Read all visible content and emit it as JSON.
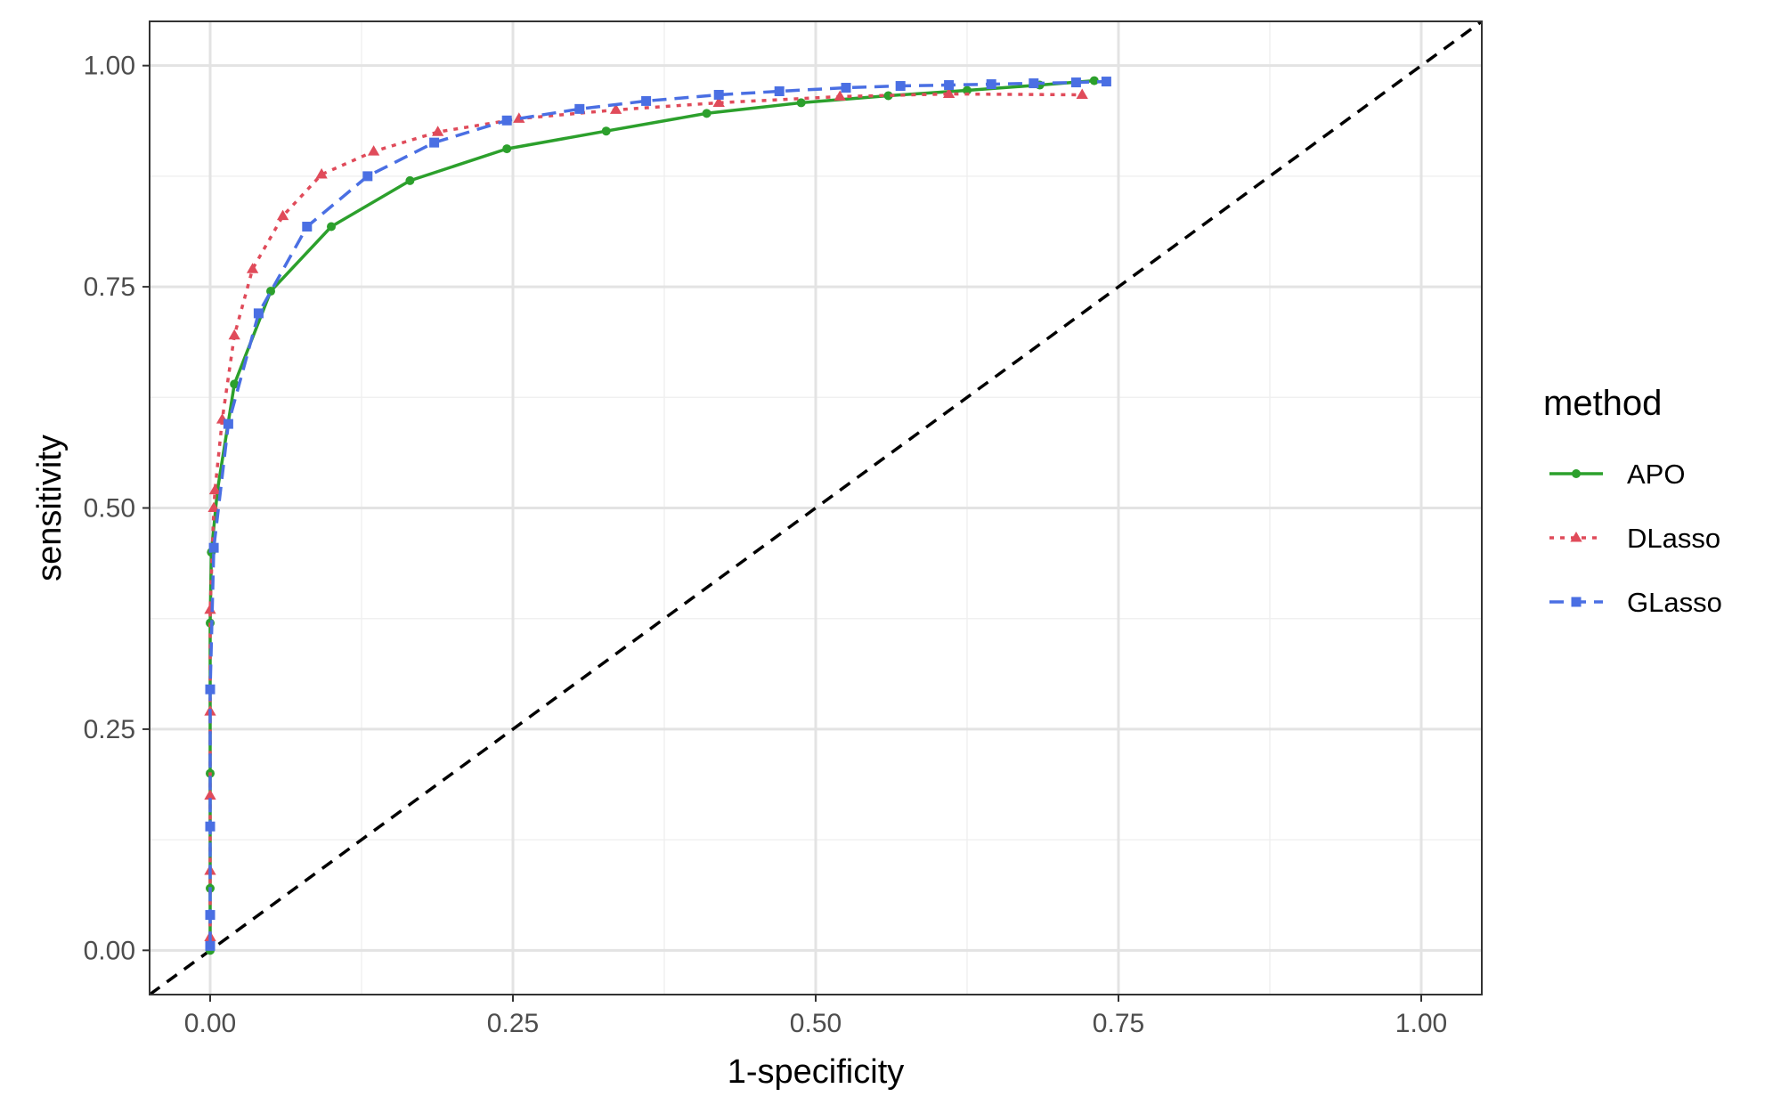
{
  "chart_data": {
    "type": "line",
    "xlabel": "1-specificity",
    "ylabel": "sensitivity",
    "xlim": [
      -0.05,
      1.05
    ],
    "ylim": [
      -0.05,
      1.05
    ],
    "x_ticks": [
      0,
      0.25,
      0.5,
      0.75,
      1.0
    ],
    "x_tick_labels": [
      "0.00",
      "0.25",
      "0.50",
      "0.75",
      "1.00"
    ],
    "y_ticks": [
      0,
      0.25,
      0.5,
      0.75,
      1.0
    ],
    "y_tick_labels": [
      "0.00",
      "0.25",
      "0.50",
      "0.75",
      "1.00"
    ],
    "grid": true,
    "legend": {
      "title": "method",
      "position": "right"
    },
    "reference_line": {
      "from": [
        0,
        0
      ],
      "to": [
        1,
        1
      ],
      "style": "dashed",
      "color": "#000000"
    },
    "series": [
      {
        "name": "APO",
        "color": "#2ca02c",
        "linestyle": "solid",
        "marker": "circle",
        "x": [
          0,
          0,
          0,
          0,
          0.001,
          0.006,
          0.02,
          0.05,
          0.1,
          0.165,
          0.245,
          0.327,
          0.41,
          0.488,
          0.56,
          0.625,
          0.685,
          0.73
        ],
        "y": [
          0.0,
          0.07,
          0.2,
          0.37,
          0.45,
          0.52,
          0.64,
          0.745,
          0.818,
          0.87,
          0.906,
          0.926,
          0.946,
          0.958,
          0.966,
          0.972,
          0.978,
          0.983
        ]
      },
      {
        "name": "DLasso",
        "color": "#e04b5a",
        "linestyle": "dotted",
        "marker": "triangle",
        "x": [
          0,
          0,
          0,
          0,
          0,
          0.003,
          0.004,
          0.01,
          0.02,
          0.035,
          0.06,
          0.092,
          0.135,
          0.188,
          0.255,
          0.335,
          0.42,
          0.52,
          0.61,
          0.72
        ],
        "y": [
          0.015,
          0.09,
          0.175,
          0.27,
          0.385,
          0.5,
          0.52,
          0.6,
          0.695,
          0.77,
          0.83,
          0.877,
          0.903,
          0.925,
          0.94,
          0.95,
          0.958,
          0.965,
          0.968,
          0.967
        ]
      },
      {
        "name": "GLasso",
        "color": "#4a6fe3",
        "linestyle": "dashed",
        "marker": "square",
        "x": [
          0,
          0,
          0,
          0,
          0.003,
          0.015,
          0.04,
          0.08,
          0.13,
          0.185,
          0.245,
          0.305,
          0.36,
          0.42,
          0.47,
          0.525,
          0.57,
          0.61,
          0.645,
          0.68,
          0.715,
          0.74
        ],
        "y": [
          0.005,
          0.04,
          0.14,
          0.295,
          0.455,
          0.595,
          0.72,
          0.818,
          0.875,
          0.913,
          0.938,
          0.951,
          0.96,
          0.967,
          0.971,
          0.975,
          0.977,
          0.978,
          0.979,
          0.98,
          0.981,
          0.982
        ]
      }
    ]
  }
}
